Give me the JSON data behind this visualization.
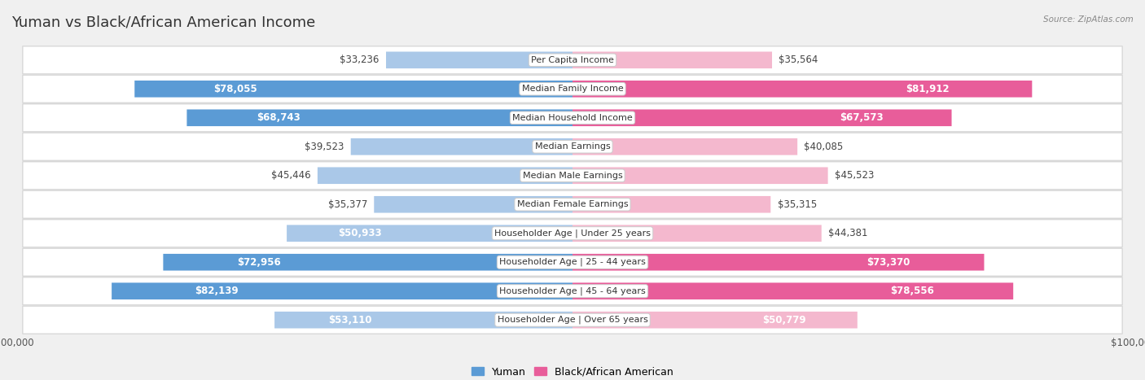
{
  "title": "Yuman vs Black/African American Income",
  "source": "Source: ZipAtlas.com",
  "categories": [
    "Per Capita Income",
    "Median Family Income",
    "Median Household Income",
    "Median Earnings",
    "Median Male Earnings",
    "Median Female Earnings",
    "Householder Age | Under 25 years",
    "Householder Age | 25 - 44 years",
    "Householder Age | 45 - 64 years",
    "Householder Age | Over 65 years"
  ],
  "yuman_values": [
    33236,
    78055,
    68743,
    39523,
    45446,
    35377,
    50933,
    72956,
    82139,
    53110
  ],
  "black_values": [
    35564,
    81912,
    67573,
    40085,
    45523,
    35315,
    44381,
    73370,
    78556,
    50779
  ],
  "yuman_labels": [
    "$33,236",
    "$78,055",
    "$68,743",
    "$39,523",
    "$45,446",
    "$35,377",
    "$50,933",
    "$72,956",
    "$82,139",
    "$53,110"
  ],
  "black_labels": [
    "$35,564",
    "$81,912",
    "$67,573",
    "$40,085",
    "$45,523",
    "$35,315",
    "$44,381",
    "$73,370",
    "$78,556",
    "$50,779"
  ],
  "yuman_color_light": "#aac8e8",
  "yuman_color_dark": "#5b9bd5",
  "black_color_light": "#f4b8ce",
  "black_color_dark": "#e85d9a",
  "yuman_threshold": 55000,
  "black_threshold": 55000,
  "max_value": 100000,
  "background_color": "#f0f0f0",
  "row_bg_color": "#ffffff",
  "row_border_color": "#d8d8d8",
  "title_fontsize": 13,
  "label_fontsize": 8.5,
  "category_fontsize": 8.0
}
